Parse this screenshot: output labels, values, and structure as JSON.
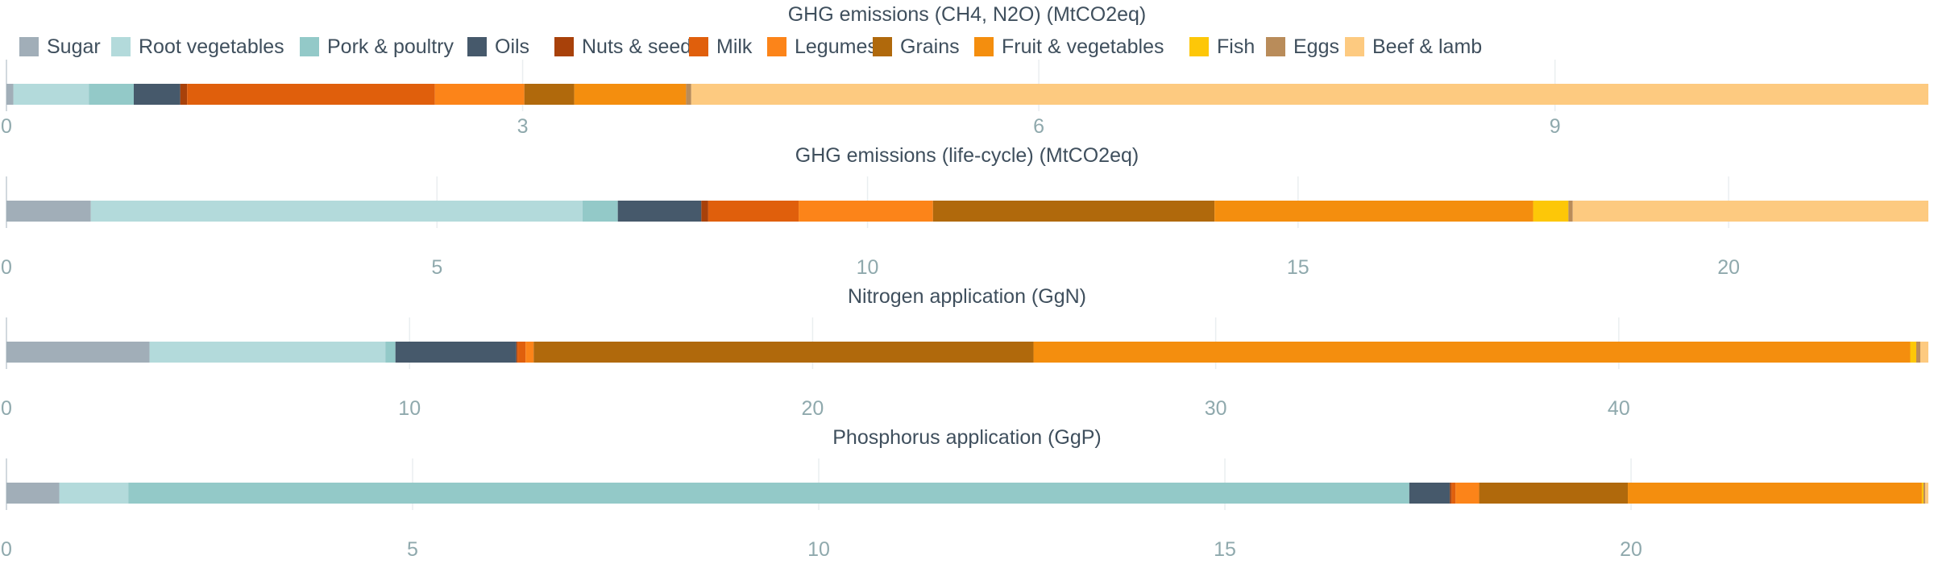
{
  "legend": [
    {
      "name": "Sugar",
      "color": "#a1aeb8"
    },
    {
      "name": "Root vegetables",
      "color": "#b3dadb"
    },
    {
      "name": "Pork & poultry",
      "color": "#93c9c8"
    },
    {
      "name": "Oils",
      "color": "#46596b"
    },
    {
      "name": "Nuts & seeds",
      "color": "#a8410a"
    },
    {
      "name": "Milk",
      "color": "#e05f0c"
    },
    {
      "name": "Legumes",
      "color": "#fc8419"
    },
    {
      "name": "Grains",
      "color": "#b0690c"
    },
    {
      "name": "Fruit & vegetables",
      "color": "#f48e0e"
    },
    {
      "name": "Fish",
      "color": "#fdc708"
    },
    {
      "name": "Eggs",
      "color": "#b98c5a"
    },
    {
      "name": "Beef & lamb",
      "color": "#fdca80"
    }
  ],
  "chart_data": [
    {
      "type": "bar",
      "orientation": "horizontal",
      "stacked": true,
      "title": "GHG emissions (CH4, N2O) (MtCO2eq)",
      "categories": [
        "Sugar",
        "Root vegetables",
        "Pork & poultry",
        "Oils",
        "Nuts & seeds",
        "Milk",
        "Legumes",
        "Grains",
        "Fruit & vegetables",
        "Fish",
        "Eggs",
        "Beef & lamb"
      ],
      "values": [
        0.04,
        0.44,
        0.26,
        0.27,
        0.04,
        1.44,
        0.52,
        0.29,
        0.65,
        0.0,
        0.03,
        7.19
      ],
      "xlim": [
        0,
        11.17
      ],
      "ticks": [
        0,
        3,
        6,
        9
      ]
    },
    {
      "type": "bar",
      "orientation": "horizontal",
      "stacked": true,
      "title": "GHG emissions (life-cycle) (MtCO2eq)",
      "categories": [
        "Sugar",
        "Root vegetables",
        "Pork & poultry",
        "Oils",
        "Nuts & seeds",
        "Milk",
        "Legumes",
        "Grains",
        "Fruit & vegetables",
        "Fish",
        "Eggs",
        "Beef & lamb"
      ],
      "values": [
        0.98,
        5.71,
        0.41,
        0.97,
        0.08,
        1.05,
        1.56,
        3.27,
        3.7,
        0.41,
        0.05,
        4.13
      ],
      "xlim": [
        0,
        22.32
      ],
      "ticks": [
        0,
        5,
        10,
        15,
        20
      ]
    },
    {
      "type": "bar",
      "orientation": "horizontal",
      "stacked": true,
      "title": "Nitrogen application (GgN)",
      "categories": [
        "Sugar",
        "Root vegetables",
        "Pork & poultry",
        "Oils",
        "Nuts & seeds",
        "Milk",
        "Legumes",
        "Grains",
        "Fruit & vegetables",
        "Fish",
        "Eggs",
        "Beef & lamb"
      ],
      "values": [
        3.55,
        5.85,
        0.25,
        3.0,
        0.03,
        0.2,
        0.2,
        12.4,
        21.75,
        0.15,
        0.1,
        0.2
      ],
      "xlim": [
        0,
        47.68
      ],
      "ticks": [
        0,
        10,
        20,
        30,
        40
      ]
    },
    {
      "type": "bar",
      "orientation": "horizontal",
      "stacked": true,
      "title": "Phosphorus application (GgP)",
      "categories": [
        "Sugar",
        "Root vegetables",
        "Pork & poultry",
        "Oils",
        "Nuts & seeds",
        "Milk",
        "Legumes",
        "Grains",
        "Fruit & vegetables",
        "Fish",
        "Eggs",
        "Beef & lamb"
      ],
      "values": [
        0.65,
        0.85,
        15.77,
        0.5,
        0.02,
        0.05,
        0.29,
        1.83,
        3.62,
        0.02,
        0.02,
        0.04
      ],
      "xlim": [
        0,
        23.66
      ],
      "ticks": [
        0,
        5,
        10,
        15,
        20
      ]
    }
  ]
}
